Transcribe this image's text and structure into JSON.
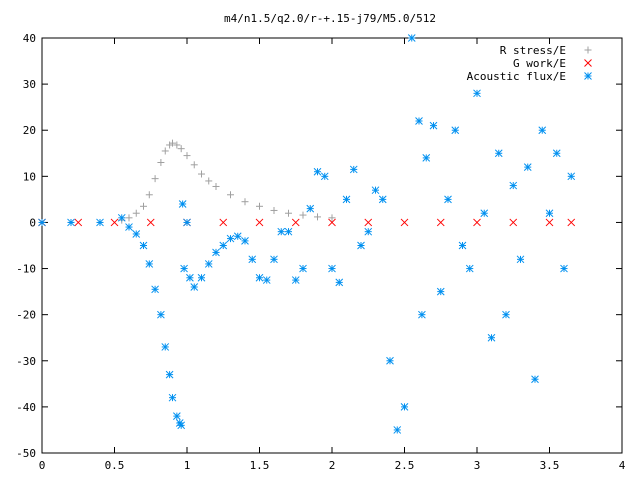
{
  "chart_data": {
    "type": "scatter",
    "title": "m4/n1.5/q2.0/r-+.15-j79/M5.0/512",
    "xlabel": "",
    "ylabel": "",
    "xlim": [
      0,
      4
    ],
    "ylim": [
      -50,
      40
    ],
    "x_ticks": [
      "0",
      "0.5",
      "1",
      "1.5",
      "2",
      "2.5",
      "3",
      "3.5",
      "4"
    ],
    "y_ticks": [
      "-50",
      "-40",
      "-30",
      "-20",
      "-10",
      "0",
      "10",
      "20",
      "30",
      "40"
    ],
    "grid": false,
    "legend_position": "top-right",
    "series": [
      {
        "name": "R stress/E",
        "marker": "+",
        "color": "#a0a0a0",
        "x": [
          0.0,
          0.2,
          0.4,
          0.55,
          0.6,
          0.65,
          0.7,
          0.74,
          0.78,
          0.82,
          0.85,
          0.88,
          0.9,
          0.93,
          0.96,
          1.0,
          1.05,
          1.1,
          1.15,
          1.2,
          1.3,
          1.4,
          1.5,
          1.6,
          1.7,
          1.8,
          1.9,
          2.0
        ],
        "y": [
          0.0,
          0.0,
          0.0,
          0.5,
          1.0,
          2.0,
          3.5,
          6.0,
          9.5,
          13.0,
          15.5,
          16.8,
          17.2,
          16.8,
          16.0,
          14.5,
          12.5,
          10.5,
          9.0,
          7.8,
          6.0,
          4.5,
          3.5,
          2.6,
          2.0,
          1.6,
          1.2,
          1.0
        ]
      },
      {
        "name": "G work/E",
        "marker": "x",
        "color": "#ff0000",
        "x": [
          0.0,
          0.25,
          0.5,
          0.75,
          1.0,
          1.25,
          1.5,
          1.75,
          2.0,
          2.25,
          2.5,
          2.75,
          3.0,
          3.25,
          3.5,
          3.65
        ],
        "y": [
          0.0,
          0.0,
          0.0,
          0.0,
          0.0,
          0.0,
          0.0,
          0.0,
          0.0,
          0.0,
          0.0,
          0.0,
          0.0,
          0.0,
          0.0,
          0.0
        ]
      },
      {
        "name": "Acoustic flux/E",
        "marker": "*",
        "color": "#0090f0",
        "x": [
          0.0,
          0.2,
          0.4,
          0.55,
          0.6,
          0.65,
          0.7,
          0.74,
          0.78,
          0.82,
          0.85,
          0.88,
          0.9,
          0.93,
          0.95,
          0.96,
          0.97,
          0.98,
          1.0,
          1.02,
          1.05,
          1.1,
          1.15,
          1.2,
          1.25,
          1.3,
          1.35,
          1.4,
          1.45,
          1.5,
          1.55,
          1.6,
          1.65,
          1.7,
          1.75,
          1.8,
          1.85,
          1.9,
          1.95,
          2.0,
          2.05,
          2.1,
          2.15,
          2.2,
          2.25,
          2.3,
          2.35,
          2.4,
          2.45,
          2.5,
          2.55,
          2.6,
          2.62,
          2.65,
          2.7,
          2.75,
          2.8,
          2.85,
          2.9,
          2.95,
          3.0,
          3.05,
          3.1,
          3.15,
          3.2,
          3.25,
          3.3,
          3.35,
          3.4,
          3.45,
          3.5,
          3.55,
          3.6,
          3.65
        ],
        "y": [
          0.0,
          0.0,
          0.0,
          1.0,
          -1.0,
          -2.5,
          -5.0,
          -9.0,
          -14.5,
          -20.0,
          -27.0,
          -33.0,
          -38.0,
          -42.0,
          -43.5,
          -44.0,
          4.0,
          -10.0,
          0.0,
          -12.0,
          -14.0,
          -12.0,
          -9.0,
          -6.5,
          -5.0,
          -3.5,
          -3.0,
          -4.0,
          -8.0,
          -12.0,
          -12.5,
          -8.0,
          -2.0,
          -2.0,
          -12.5,
          -10.0,
          3.0,
          11.0,
          10.0,
          -10.0,
          -13.0,
          5.0,
          11.5,
          -5.0,
          -2.0,
          7.0,
          5.0,
          -30.0,
          -45.0,
          -40.0,
          40.0,
          22.0,
          -20.0,
          14.0,
          21.0,
          -15.0,
          5.0,
          20.0,
          -5.0,
          -10.0,
          28.0,
          2.0,
          -25.0,
          15.0,
          -20.0,
          8.0,
          -8.0,
          12.0,
          -34.0,
          20.0,
          2.0,
          15.0,
          -10.0,
          10.0
        ]
      }
    ]
  }
}
